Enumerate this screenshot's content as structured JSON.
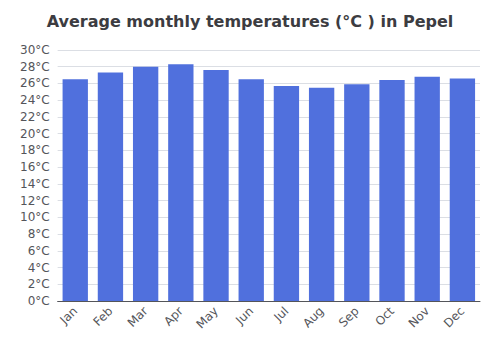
{
  "chart_data": {
    "type": "bar",
    "title": "Average monthly temperatures (°C ) in Pepel",
    "categories": [
      "Jan",
      "Feb",
      "Mar",
      "Apr",
      "May",
      "Jun",
      "Jul",
      "Aug",
      "Sep",
      "Oct",
      "Nov",
      "Dec"
    ],
    "values": [
      26.5,
      27.3,
      28.0,
      28.3,
      27.6,
      26.5,
      25.7,
      25.5,
      25.9,
      26.4,
      26.8,
      26.6
    ],
    "ylim": [
      0,
      30
    ],
    "yticks": [
      {
        "value": 0,
        "label": "0°C"
      },
      {
        "value": 2,
        "label": "2°C"
      },
      {
        "value": 4,
        "label": "4°C"
      },
      {
        "value": 6,
        "label": "6°C"
      },
      {
        "value": 8,
        "label": "8°C"
      },
      {
        "value": 10,
        "label": "10°C"
      },
      {
        "value": 12,
        "label": "12°C"
      },
      {
        "value": 14,
        "label": "14°C"
      },
      {
        "value": 16,
        "label": "16°C"
      },
      {
        "value": 18,
        "label": "18°C"
      },
      {
        "value": 20,
        "label": "20°C"
      },
      {
        "value": 22,
        "label": "22°C"
      },
      {
        "value": 24,
        "label": "24°C"
      },
      {
        "value": 26,
        "label": "26°C"
      },
      {
        "value": 28,
        "label": "28°C"
      },
      {
        "value": 30,
        "label": "30°C"
      }
    ],
    "grid": true
  }
}
